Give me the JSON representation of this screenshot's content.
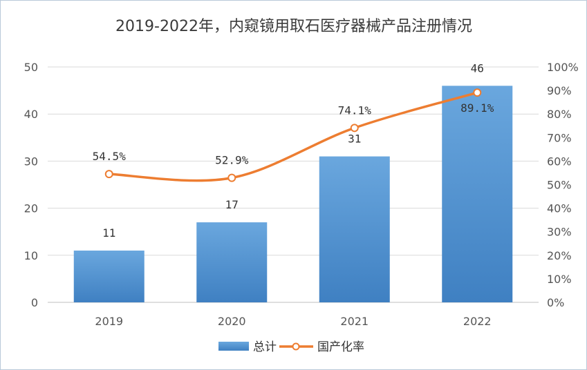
{
  "chart_data": {
    "type": "bar",
    "title": "2019-2022年，内窥镜用取石医疗器械产品注册情况",
    "categories": [
      "2019",
      "2020",
      "2021",
      "2022"
    ],
    "series": [
      {
        "name": "总计",
        "type": "bar",
        "axis": "left",
        "values": [
          11,
          17,
          31,
          46
        ],
        "labels": [
          "11",
          "17",
          "31",
          "46"
        ]
      },
      {
        "name": "国产化率",
        "type": "line",
        "axis": "right",
        "values": [
          54.5,
          52.9,
          74.1,
          89.1
        ],
        "labels": [
          "54.5%",
          "52.9%",
          "74.1%",
          "89.1%"
        ]
      }
    ],
    "y_left": {
      "min": 0,
      "max": 50,
      "ticks": [
        "0",
        "10",
        "20",
        "30",
        "40",
        "50"
      ]
    },
    "y_right": {
      "min": 0,
      "max": 100,
      "ticks": [
        "0%",
        "10%",
        "20%",
        "30%",
        "40%",
        "50%",
        "60%",
        "70%",
        "80%",
        "90%",
        "100%"
      ]
    },
    "grid": true,
    "legend_position": "bottom",
    "colors": {
      "bar": "#5b9bd5",
      "bar_dark": "#3f80c2",
      "line": "#ed7d31",
      "marker_fill": "#ffffff",
      "grid": "#d9d9d9"
    }
  }
}
